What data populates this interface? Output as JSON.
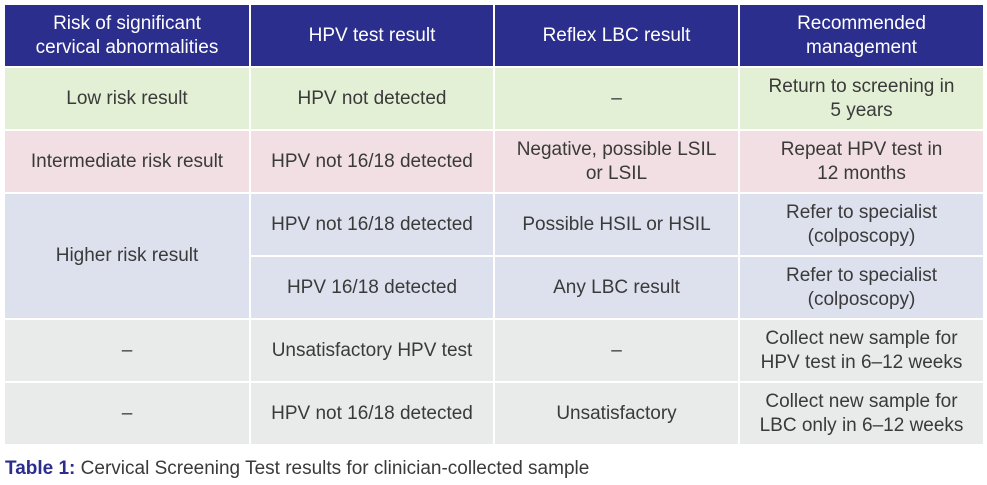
{
  "table": {
    "headers": [
      {
        "line1": "Risk of significant",
        "line2": "cervical abnormalities"
      },
      {
        "line1": "HPV test result",
        "line2": ""
      },
      {
        "line1": "Reflex LBC result",
        "line2": ""
      },
      {
        "line1": "Recommended",
        "line2": "management"
      }
    ],
    "rows": {
      "low": {
        "risk": "Low risk result",
        "hpv": "HPV not detected",
        "lbc": "–",
        "mgmt1": "Return to screening in",
        "mgmt2": "5 years"
      },
      "intermediate": {
        "risk": "Intermediate risk result",
        "hpv": "HPV not 16/18 detected",
        "lbc1": "Negative, possible LSIL",
        "lbc2": "or LSIL",
        "mgmt1": "Repeat HPV test in",
        "mgmt2": "12 months"
      },
      "higher": {
        "risk": "Higher risk result",
        "a": {
          "hpv": "HPV not 16/18 detected",
          "lbc": "Possible HSIL or HSIL",
          "mgmt1": "Refer to specialist",
          "mgmt2": "(colposcopy)"
        },
        "b": {
          "hpv": "HPV 16/18 detected",
          "lbc": "Any LBC result",
          "mgmt1": "Refer to specialist",
          "mgmt2": "(colposcopy)"
        }
      },
      "unsat_hpv": {
        "risk": "–",
        "hpv": "Unsatisfactory HPV test",
        "lbc": "–",
        "mgmt1": "Collect new sample for",
        "mgmt2": "HPV test in 6–12 weeks"
      },
      "unsat_lbc": {
        "risk": "–",
        "hpv": "HPV not 16/18 detected",
        "lbc": "Unsatisfactory",
        "mgmt1": "Collect new sample for",
        "mgmt2": "LBC only in 6–12 weeks"
      }
    }
  },
  "caption": {
    "label": "Table 1:",
    "text": " Cervical Screening Test results for clinician-collected sample"
  },
  "colors": {
    "header": "#2b2e8c",
    "low": "#e3f0d6",
    "intermediate": "#f1dfe3",
    "higher": "#dde1ee",
    "unsatisfactory": "#e9ebea"
  }
}
